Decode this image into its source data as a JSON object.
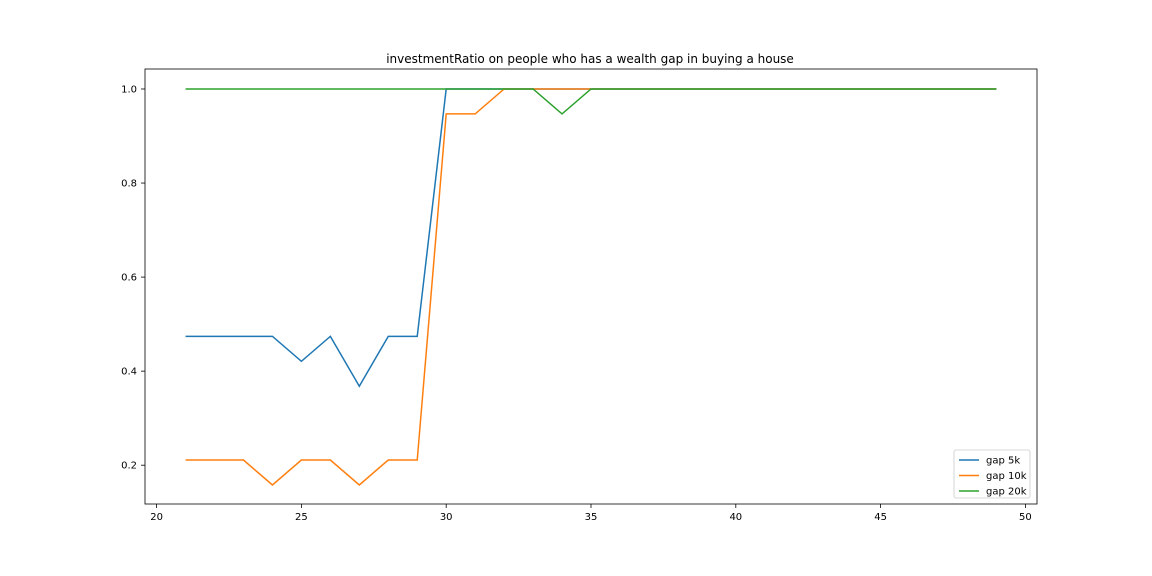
{
  "chart_data": {
    "type": "line",
    "title": "investmentRatio on people who has a wealth gap in buying a house",
    "xlabel": "",
    "ylabel": "",
    "xlim": [
      19.6,
      50.4
    ],
    "ylim": [
      0.1175,
      1.0425
    ],
    "x_ticks": [
      20,
      25,
      30,
      35,
      40,
      45,
      50
    ],
    "y_ticks": [
      0.2,
      0.4,
      0.6,
      0.8,
      1.0
    ],
    "x_tick_labels": [
      "20",
      "25",
      "30",
      "35",
      "40",
      "45",
      "50"
    ],
    "y_tick_labels": [
      "0.2",
      "0.4",
      "0.6",
      "0.8",
      "1.0"
    ],
    "grid": false,
    "legend_position": "lower-right",
    "x": [
      21,
      22,
      23,
      24,
      25,
      26,
      27,
      28,
      29,
      30,
      31,
      32,
      33,
      34,
      35,
      36,
      37,
      38,
      39,
      40,
      41,
      42,
      43,
      44,
      45,
      46,
      47,
      48,
      49
    ],
    "series": [
      {
        "name": "gap 5k",
        "color": "#1f77b4",
        "values": [
          0.474,
          0.474,
          0.474,
          0.474,
          0.421,
          0.474,
          0.368,
          0.474,
          0.474,
          1.0,
          1.0,
          1.0,
          1.0,
          1.0,
          1.0,
          1.0,
          1.0,
          1.0,
          1.0,
          1.0,
          1.0,
          1.0,
          1.0,
          1.0,
          1.0,
          1.0,
          1.0,
          1.0,
          1.0
        ]
      },
      {
        "name": "gap 10k",
        "color": "#ff7f0e",
        "values": [
          0.211,
          0.211,
          0.211,
          0.158,
          0.211,
          0.211,
          0.158,
          0.211,
          0.211,
          0.947,
          0.947,
          1.0,
          1.0,
          1.0,
          1.0,
          1.0,
          1.0,
          1.0,
          1.0,
          1.0,
          1.0,
          1.0,
          1.0,
          1.0,
          1.0,
          1.0,
          1.0,
          1.0,
          1.0
        ]
      },
      {
        "name": "gap 20k",
        "color": "#2ca02c",
        "values": [
          1.0,
          1.0,
          1.0,
          1.0,
          1.0,
          1.0,
          1.0,
          1.0,
          1.0,
          1.0,
          1.0,
          1.0,
          1.0,
          0.947,
          1.0,
          1.0,
          1.0,
          1.0,
          1.0,
          1.0,
          1.0,
          1.0,
          1.0,
          1.0,
          1.0,
          1.0,
          1.0,
          1.0,
          1.0
        ]
      }
    ]
  }
}
